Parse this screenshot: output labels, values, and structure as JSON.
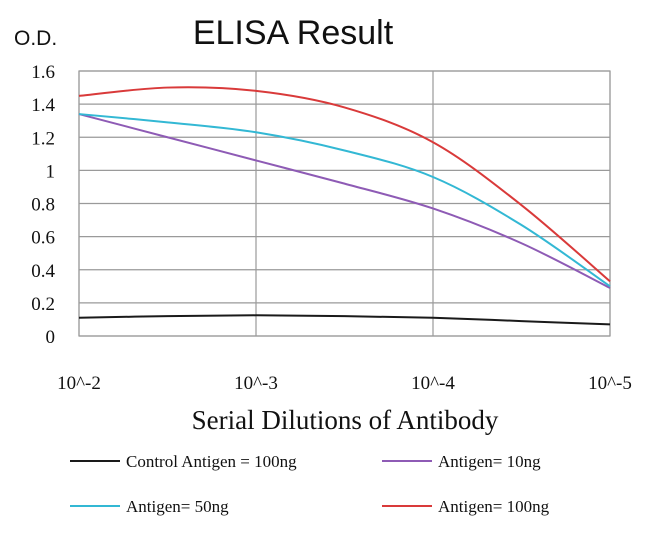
{
  "chart_data": {
    "type": "line",
    "title": "ELISA Result",
    "ylabel": "O.D.",
    "xlabel": "Serial Dilutions of Antibody",
    "categories": [
      "10^-2",
      "10^-3",
      "10^-4",
      "10^-5"
    ],
    "x": [
      0,
      0.5,
      1,
      1.5,
      2,
      2.5,
      3
    ],
    "ylim": [
      0,
      1.6
    ],
    "yticks": [
      "0",
      "0.2",
      "0.4",
      "0.6",
      "0.8",
      "1",
      "1.2",
      "1.4",
      "1.6"
    ],
    "grid": true,
    "legend_position": "bottom",
    "series": [
      {
        "name": "Control Antigen = 100ng",
        "color": "#1a1a1a",
        "values": [
          0.11,
          0.12,
          0.125,
          0.12,
          0.11,
          0.09,
          0.07
        ]
      },
      {
        "name": "Antigen= 10ng",
        "color": "#8e5bb5",
        "values": [
          1.34,
          1.2,
          1.06,
          0.92,
          0.77,
          0.56,
          0.29
        ]
      },
      {
        "name": "Antigen= 50ng",
        "color": "#33b8d4",
        "values": [
          1.34,
          1.29,
          1.23,
          1.12,
          0.96,
          0.67,
          0.3
        ]
      },
      {
        "name": "Antigen= 100ng",
        "color": "#d93a3a",
        "values": [
          1.45,
          1.5,
          1.48,
          1.38,
          1.17,
          0.79,
          0.33
        ]
      }
    ]
  }
}
